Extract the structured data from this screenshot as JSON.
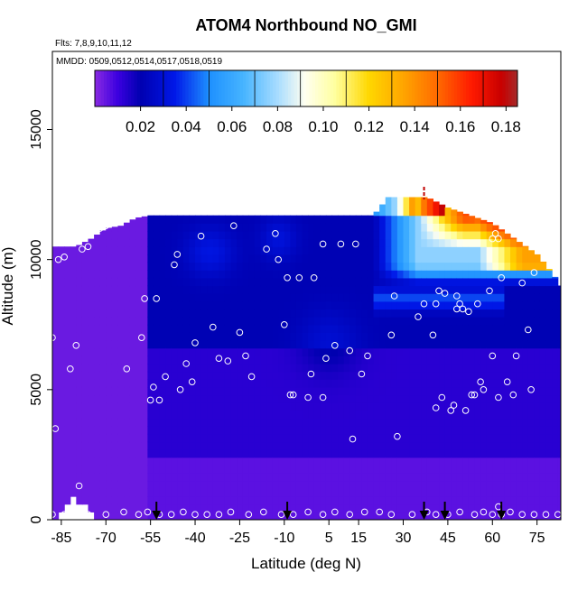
{
  "chart_data": {
    "type": "heatmap",
    "title": "ATOM4 Northbound NO_GMI",
    "flights_note": "Flts: 7,8,9,10,11,12",
    "dates_note": "MMDD: 0509,0512,0514,0517,0518,0519",
    "xlabel": "Latitude (deg N)",
    "ylabel": "Altitude (m)",
    "xlim": [
      -88,
      83
    ],
    "ylim": [
      0,
      18000
    ],
    "x_ticks": [
      -85,
      -70,
      -55,
      -40,
      -25,
      -10,
      5,
      15,
      30,
      45,
      60,
      75
    ],
    "x_tick_labels": [
      "-85",
      "-70",
      "-55",
      "-40",
      "-25",
      "-10",
      "5",
      "15",
      "30",
      "45",
      "60",
      "75"
    ],
    "y_ticks": [
      0,
      5000,
      10000,
      15000
    ],
    "y_tick_labels": [
      "0",
      "5000",
      "10000",
      "15000"
    ],
    "colorbar": {
      "range": [
        0,
        0.185
      ],
      "ticks": [
        0.02,
        0.04,
        0.06,
        0.08,
        0.1,
        0.12,
        0.14,
        0.16,
        0.18
      ],
      "tick_labels": [
        "0.02",
        "0.04",
        "0.06",
        "0.08",
        "0.10",
        "0.12",
        "0.14",
        "0.16",
        "0.18"
      ]
    },
    "color_scale": [
      {
        "v": 0.0,
        "c": "#8a2be2"
      },
      {
        "v": 0.01,
        "c": "#3b00e0"
      },
      {
        "v": 0.02,
        "c": "#0000b0"
      },
      {
        "v": 0.035,
        "c": "#0018e8"
      },
      {
        "v": 0.05,
        "c": "#1e90ff"
      },
      {
        "v": 0.065,
        "c": "#46b4ff"
      },
      {
        "v": 0.08,
        "c": "#a8dcff"
      },
      {
        "v": 0.092,
        "c": "#fffff0"
      },
      {
        "v": 0.105,
        "c": "#ffffa0"
      },
      {
        "v": 0.12,
        "c": "#ffd700"
      },
      {
        "v": 0.135,
        "c": "#ffa500"
      },
      {
        "v": 0.15,
        "c": "#ff6a00"
      },
      {
        "v": 0.165,
        "c": "#ff1a00"
      },
      {
        "v": 0.178,
        "c": "#c80000"
      },
      {
        "v": 0.185,
        "c": "#a52a2a"
      }
    ],
    "ceiling_profile": [
      [
        -85,
        10500
      ],
      [
        -80,
        10500
      ],
      [
        -75,
        10800
      ],
      [
        -70,
        11200
      ],
      [
        -65,
        11300
      ],
      [
        -60,
        11600
      ],
      [
        -55,
        11700
      ],
      [
        -43,
        11700
      ],
      [
        -30,
        11700
      ],
      [
        -20,
        11700
      ],
      [
        -10,
        11700
      ],
      [
        0,
        11700
      ],
      [
        10,
        11700
      ],
      [
        20,
        11700
      ],
      [
        25,
        12400
      ],
      [
        38,
        12400
      ],
      [
        45,
        12000
      ],
      [
        50,
        11800
      ],
      [
        55,
        11600
      ],
      [
        60,
        11400
      ],
      [
        65,
        11000
      ],
      [
        70,
        10600
      ],
      [
        75,
        10200
      ],
      [
        80,
        9500
      ],
      [
        83,
        9000
      ]
    ],
    "floor_profile": [
      [
        -87,
        0
      ],
      [
        -82,
        900
      ],
      [
        -78,
        600
      ],
      [
        -72,
        0
      ]
    ],
    "surface_observations": [
      [
        -88,
        7000
      ],
      [
        -87,
        3500
      ],
      [
        -86,
        10000
      ],
      [
        -84,
        10100
      ],
      [
        -82,
        5800
      ],
      [
        -80,
        6700
      ],
      [
        -79,
        1300
      ],
      [
        -78,
        10400
      ],
      [
        -76,
        10500
      ],
      [
        -72,
        11200
      ],
      [
        -70,
        11300
      ],
      [
        -67,
        11400
      ],
      [
        -63,
        5800
      ],
      [
        -58,
        7000
      ],
      [
        -57,
        8500
      ],
      [
        -55,
        4600
      ],
      [
        -54,
        5100
      ],
      [
        -53,
        8500
      ],
      [
        -52,
        4600
      ],
      [
        -50,
        5500
      ],
      [
        -47,
        9800
      ],
      [
        -46,
        10200
      ],
      [
        -45,
        5000
      ],
      [
        -43,
        6000
      ],
      [
        -41,
        5300
      ],
      [
        -40,
        6800
      ],
      [
        -38,
        10900
      ],
      [
        -34,
        7400
      ],
      [
        -32,
        6200
      ],
      [
        -29,
        6100
      ],
      [
        -27,
        11300
      ],
      [
        -25,
        7200
      ],
      [
        -23,
        6300
      ],
      [
        -21,
        5500
      ],
      [
        -18,
        12100
      ],
      [
        -16,
        10400
      ],
      [
        -13,
        11000
      ],
      [
        -12,
        10000
      ],
      [
        -10,
        7500
      ],
      [
        -9,
        9300
      ],
      [
        -8,
        4800
      ],
      [
        -7,
        4800
      ],
      [
        -5,
        9300
      ],
      [
        -2,
        4700
      ],
      [
        -1,
        5600
      ],
      [
        0,
        9300
      ],
      [
        3,
        10600
      ],
      [
        3,
        4700
      ],
      [
        4,
        6200
      ],
      [
        7,
        6700
      ],
      [
        9,
        10600
      ],
      [
        12,
        6500
      ],
      [
        13,
        3100
      ],
      [
        14,
        10600
      ],
      [
        16,
        5600
      ],
      [
        18,
        6300
      ],
      [
        27,
        8600
      ],
      [
        28,
        3200
      ],
      [
        26,
        7100
      ],
      [
        35,
        7800
      ],
      [
        37,
        8300
      ],
      [
        40,
        7100
      ],
      [
        41,
        8300
      ],
      [
        41,
        4300
      ],
      [
        42,
        8800
      ],
      [
        43,
        4700
      ],
      [
        44,
        8700
      ],
      [
        46,
        4200
      ],
      [
        47,
        4400
      ],
      [
        48,
        8100
      ],
      [
        48,
        8600
      ],
      [
        49,
        8300
      ],
      [
        50,
        8100
      ],
      [
        51,
        4200
      ],
      [
        52,
        8000
      ],
      [
        53,
        4800
      ],
      [
        54,
        4800
      ],
      [
        55,
        8300
      ],
      [
        56,
        5300
      ],
      [
        57,
        5000
      ],
      [
        59,
        8800
      ],
      [
        60,
        6300
      ],
      [
        60,
        10800
      ],
      [
        61,
        11000
      ],
      [
        62,
        10800
      ],
      [
        62,
        4700
      ],
      [
        63,
        9300
      ],
      [
        65,
        5300
      ],
      [
        67,
        4800
      ],
      [
        68,
        6300
      ],
      [
        70,
        9100
      ],
      [
        72,
        7300
      ],
      [
        73,
        5000
      ],
      [
        74,
        9500
      ],
      [
        75,
        11000
      ]
    ],
    "bottom_observations": [
      -88,
      -84,
      -80,
      -76,
      -70,
      -64,
      -59,
      -56,
      -52,
      -48,
      -44,
      -40,
      -36,
      -32,
      -28,
      -22,
      -17,
      -11,
      -7,
      -2,
      3,
      7,
      12,
      17,
      22,
      26,
      33,
      38,
      41,
      45,
      49,
      54,
      57,
      60,
      62,
      63,
      66,
      70,
      74,
      78,
      82
    ],
    "bottom_obs_altitude": [
      200,
      200,
      200,
      200,
      200,
      300,
      200,
      300,
      200,
      200,
      300,
      200,
      200,
      200,
      300,
      200,
      300,
      200,
      200,
      300,
      200,
      300,
      200,
      300,
      300,
      200,
      200,
      300,
      200,
      200,
      300,
      200,
      300,
      200,
      500,
      200,
      300,
      200,
      200,
      200,
      200
    ],
    "profile_arrows": [
      -53,
      -9,
      37,
      44,
      63
    ],
    "tropopause_mark_lat": 37
  }
}
